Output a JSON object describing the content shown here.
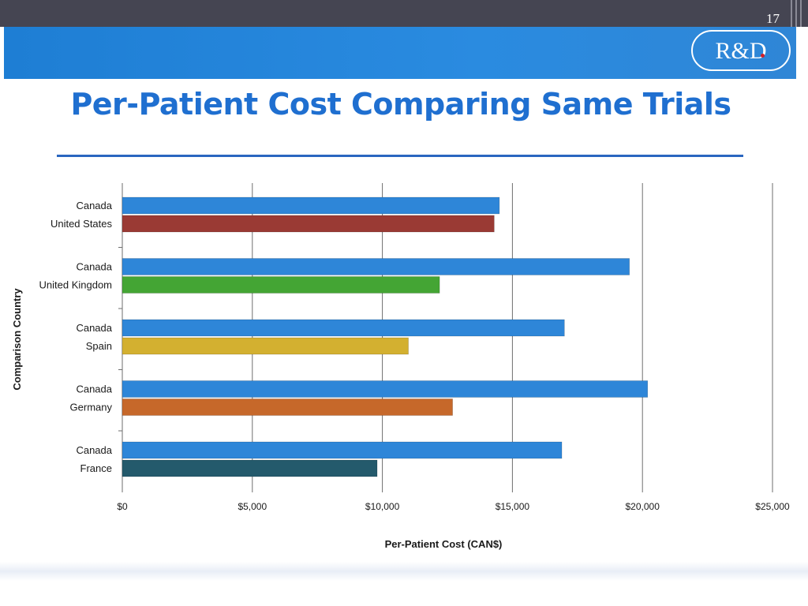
{
  "slide": {
    "number": "17",
    "logo_text": "R&D",
    "title": "Per-Patient Cost Comparing Same Trials"
  },
  "colors": {
    "canada": "#2e86d8",
    "united_states": "#9a3a34",
    "united_kingdom": "#44a534",
    "spain": "#d3b030",
    "germany": "#c6682a",
    "france": "#245a6c"
  },
  "chart_data": {
    "type": "bar",
    "orientation": "horizontal",
    "title": "",
    "xlabel": "Per-Patient Cost (CAN$)",
    "ylabel": "Comparison Country",
    "xlim": [
      0,
      25000
    ],
    "x_ticks": [
      "$0",
      "$5,000",
      "$10,000",
      "$15,000",
      "$20,000",
      "$25,000"
    ],
    "grid": "vertical",
    "legend": "none",
    "groups": [
      {
        "bars": [
          {
            "label": "Canada",
            "value": 14500,
            "color": "#2e86d8"
          },
          {
            "label": "United States",
            "value": 14300,
            "color": "#9a3a34"
          }
        ]
      },
      {
        "bars": [
          {
            "label": "Canada",
            "value": 19500,
            "color": "#2e86d8"
          },
          {
            "label": "United Kingdom",
            "value": 12200,
            "color": "#44a534"
          }
        ]
      },
      {
        "bars": [
          {
            "label": "Canada",
            "value": 17000,
            "color": "#2e86d8"
          },
          {
            "label": "Spain",
            "value": 11000,
            "color": "#d3b030"
          }
        ]
      },
      {
        "bars": [
          {
            "label": "Canada",
            "value": 20200,
            "color": "#2e86d8"
          },
          {
            "label": "Germany",
            "value": 12700,
            "color": "#c6682a"
          }
        ]
      },
      {
        "bars": [
          {
            "label": "Canada",
            "value": 16900,
            "color": "#2e86d8"
          },
          {
            "label": "France",
            "value": 9800,
            "color": "#245a6c"
          }
        ]
      }
    ]
  }
}
